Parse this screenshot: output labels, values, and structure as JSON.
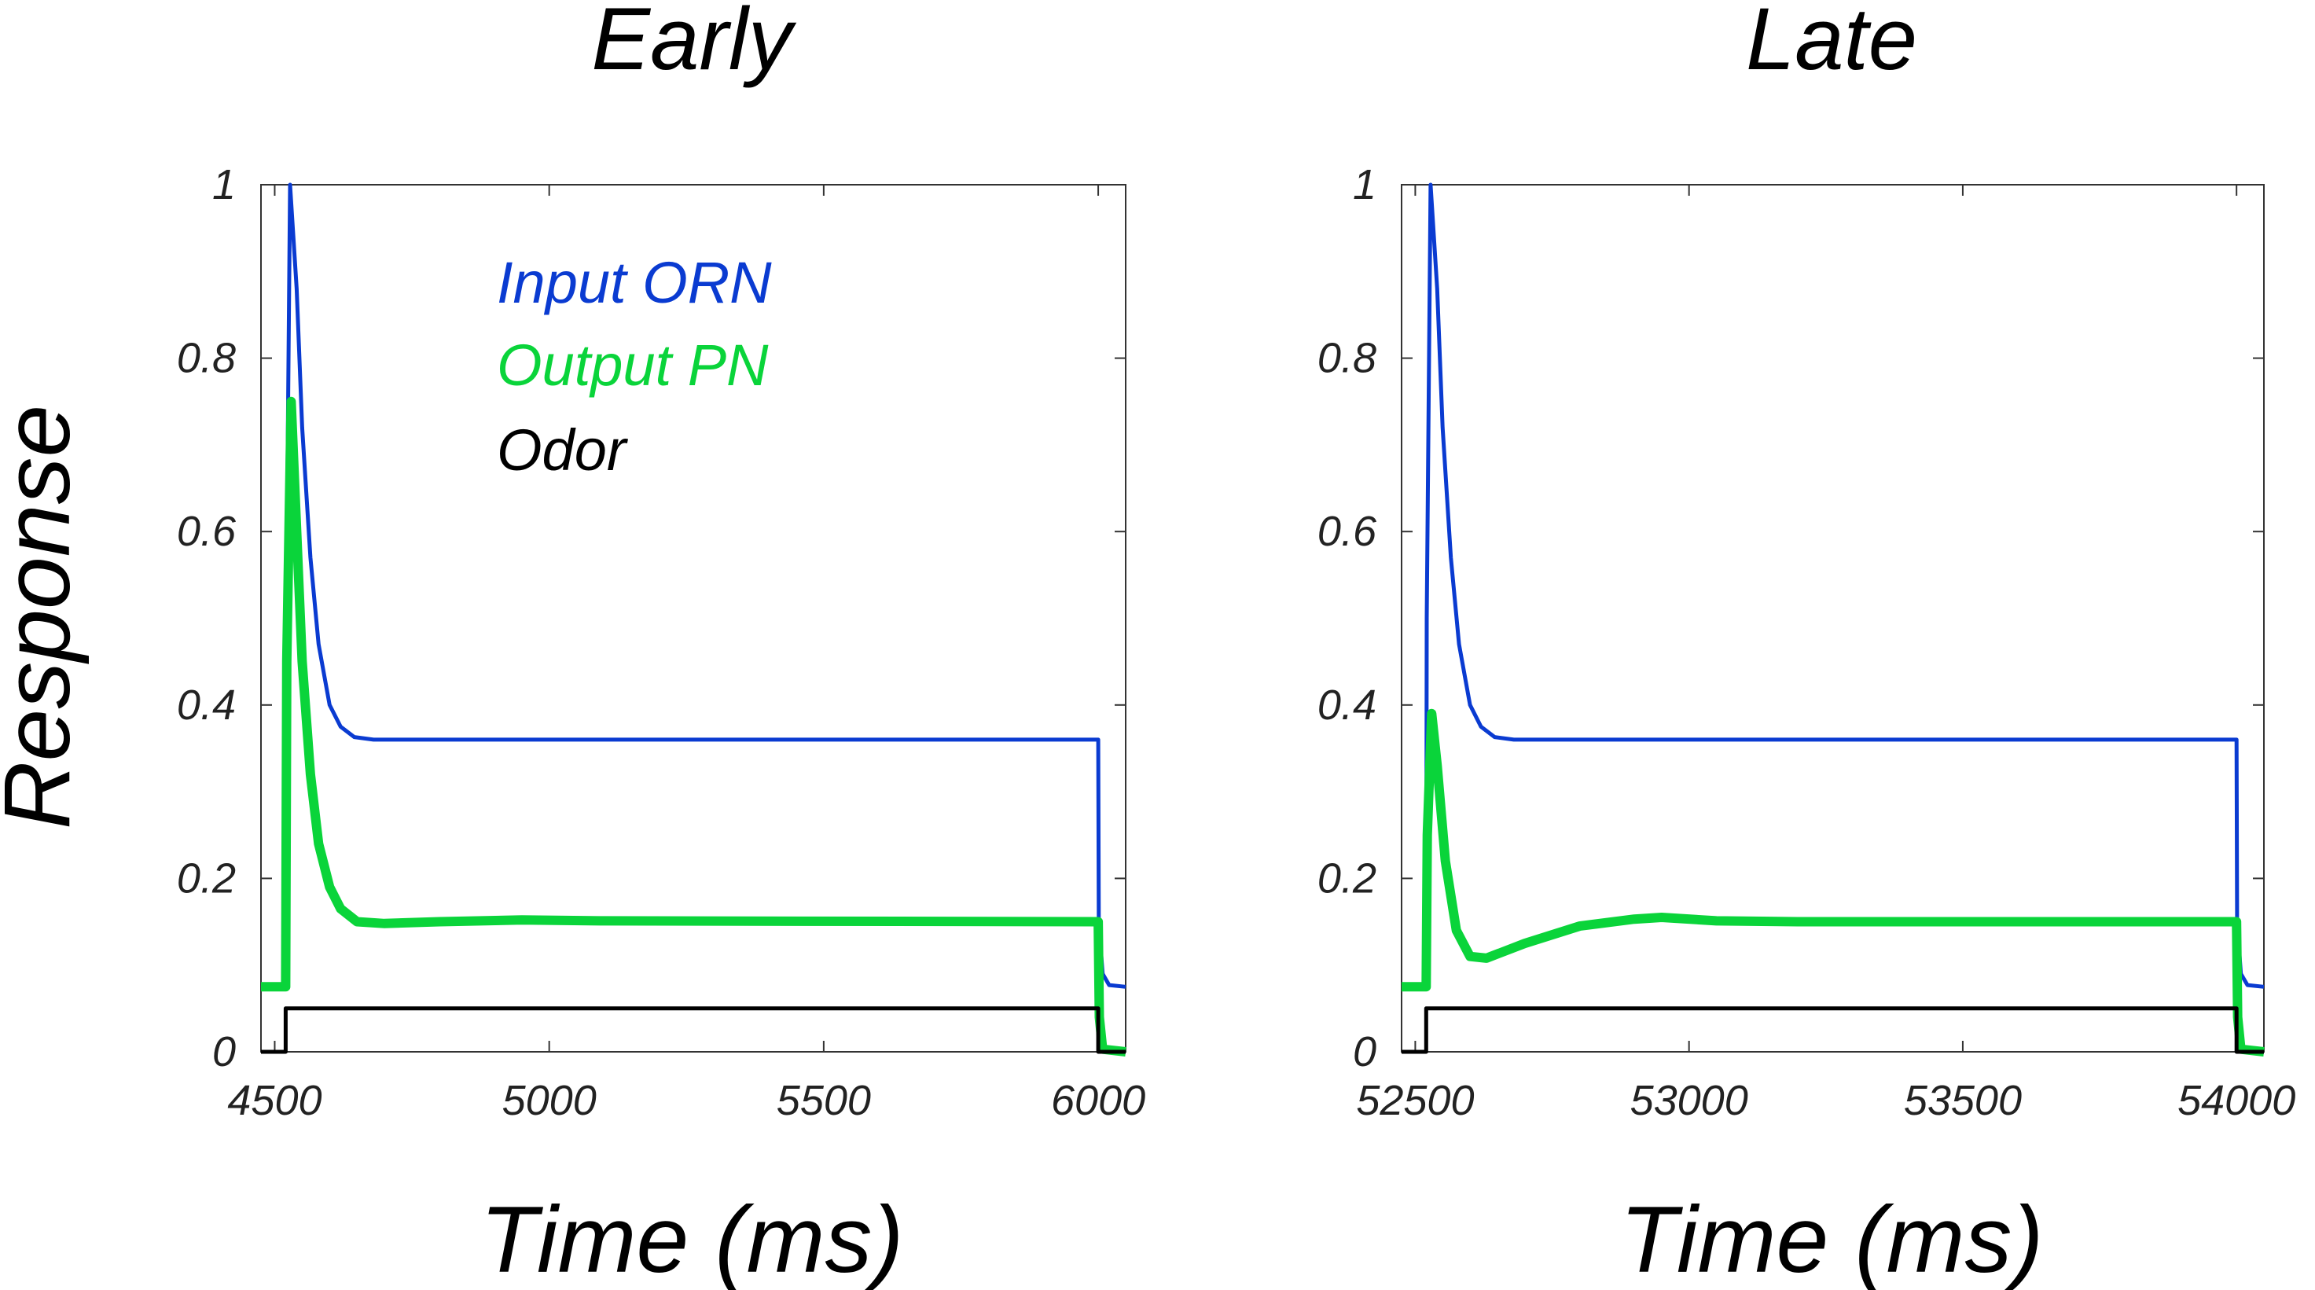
{
  "chart_data": [
    {
      "type": "line",
      "title": "Early",
      "xlabel": "Time (ms)",
      "ylabel": "Response",
      "xlim": [
        4475,
        6050
      ],
      "ylim": [
        0,
        1
      ],
      "xticks": [
        "4500",
        "5000",
        "5500",
        "6000"
      ],
      "xtick_values": [
        4500,
        5000,
        5500,
        6000
      ],
      "yticks": [
        "0",
        "0.2",
        "0.4",
        "0.6",
        "0.8",
        "1"
      ],
      "ytick_values": [
        0,
        0.2,
        0.4,
        0.6,
        0.8,
        1
      ],
      "grid": false,
      "legend": {
        "placement": "upper-middle",
        "entries": [
          "Input ORN",
          "Output PN",
          "Odor"
        ]
      },
      "series": [
        {
          "name": "Input ORN",
          "color": "#0a3bd1",
          "stroke": 5,
          "points": [
            [
              4475,
              0.075
            ],
            [
              4520,
              0.075
            ],
            [
              4521,
              0.5
            ],
            [
              4528,
              1.0
            ],
            [
              4540,
              0.88
            ],
            [
              4550,
              0.72
            ],
            [
              4565,
              0.57
            ],
            [
              4580,
              0.47
            ],
            [
              4600,
              0.4
            ],
            [
              4620,
              0.375
            ],
            [
              4645,
              0.363
            ],
            [
              4680,
              0.36
            ],
            [
              6000,
              0.36
            ],
            [
              6001,
              0.15
            ],
            [
              6008,
              0.09
            ],
            [
              6020,
              0.077
            ],
            [
              6050,
              0.075
            ]
          ]
        },
        {
          "name": "Output PN",
          "color": "#0ad43a",
          "stroke": 12,
          "points": [
            [
              4475,
              0.075
            ],
            [
              4520,
              0.075
            ],
            [
              4522,
              0.45
            ],
            [
              4530,
              0.75
            ],
            [
              4540,
              0.6
            ],
            [
              4550,
              0.45
            ],
            [
              4565,
              0.32
            ],
            [
              4580,
              0.24
            ],
            [
              4600,
              0.19
            ],
            [
              4620,
              0.165
            ],
            [
              4650,
              0.15
            ],
            [
              4700,
              0.148
            ],
            [
              4800,
              0.15
            ],
            [
              4950,
              0.152
            ],
            [
              5100,
              0.151
            ],
            [
              6000,
              0.15
            ],
            [
              6002,
              0.04
            ],
            [
              6008,
              0.003
            ],
            [
              6050,
              0.0
            ]
          ]
        },
        {
          "name": "Odor",
          "color": "#000000",
          "stroke": 5,
          "points": [
            [
              4475,
              0
            ],
            [
              4520,
              0
            ],
            [
              4520,
              0.05
            ],
            [
              6000,
              0.05
            ],
            [
              6000,
              0
            ],
            [
              6050,
              0
            ]
          ]
        }
      ]
    },
    {
      "type": "line",
      "title": "Late",
      "xlabel": "Time (ms)",
      "ylim": [
        0,
        1
      ],
      "xlim": [
        52475,
        54050
      ],
      "xticks": [
        "52500",
        "53000",
        "53500",
        "54000"
      ],
      "xtick_values": [
        52500,
        53000,
        53500,
        54000
      ],
      "yticks": [
        "0",
        "0.2",
        "0.4",
        "0.6",
        "0.8",
        "1"
      ],
      "ytick_values": [
        0,
        0.2,
        0.4,
        0.6,
        0.8,
        1
      ],
      "grid": false,
      "series": [
        {
          "name": "Input ORN",
          "color": "#0a3bd1",
          "stroke": 5,
          "points": [
            [
              52475,
              0.075
            ],
            [
              52520,
              0.075
            ],
            [
              52521,
              0.5
            ],
            [
              52528,
              1.0
            ],
            [
              52540,
              0.88
            ],
            [
              52550,
              0.72
            ],
            [
              52565,
              0.57
            ],
            [
              52580,
              0.47
            ],
            [
              52600,
              0.4
            ],
            [
              52620,
              0.375
            ],
            [
              52645,
              0.363
            ],
            [
              52680,
              0.36
            ],
            [
              54000,
              0.36
            ],
            [
              54001,
              0.15
            ],
            [
              54008,
              0.09
            ],
            [
              54020,
              0.077
            ],
            [
              54050,
              0.075
            ]
          ]
        },
        {
          "name": "Output PN",
          "color": "#0ad43a",
          "stroke": 12,
          "points": [
            [
              52475,
              0.075
            ],
            [
              52520,
              0.075
            ],
            [
              52522,
              0.25
            ],
            [
              52530,
              0.39
            ],
            [
              52540,
              0.33
            ],
            [
              52555,
              0.22
            ],
            [
              52575,
              0.14
            ],
            [
              52600,
              0.11
            ],
            [
              52630,
              0.108
            ],
            [
              52700,
              0.125
            ],
            [
              52800,
              0.145
            ],
            [
              52900,
              0.153
            ],
            [
              52950,
              0.155
            ],
            [
              53050,
              0.151
            ],
            [
              53200,
              0.15
            ],
            [
              54000,
              0.15
            ],
            [
              54002,
              0.04
            ],
            [
              54008,
              0.003
            ],
            [
              54050,
              0.0
            ]
          ]
        },
        {
          "name": "Odor",
          "color": "#000000",
          "stroke": 5,
          "points": [
            [
              52475,
              0
            ],
            [
              52520,
              0
            ],
            [
              52520,
              0.05
            ],
            [
              54000,
              0.05
            ],
            [
              54000,
              0
            ],
            [
              54050,
              0
            ]
          ]
        }
      ]
    }
  ]
}
